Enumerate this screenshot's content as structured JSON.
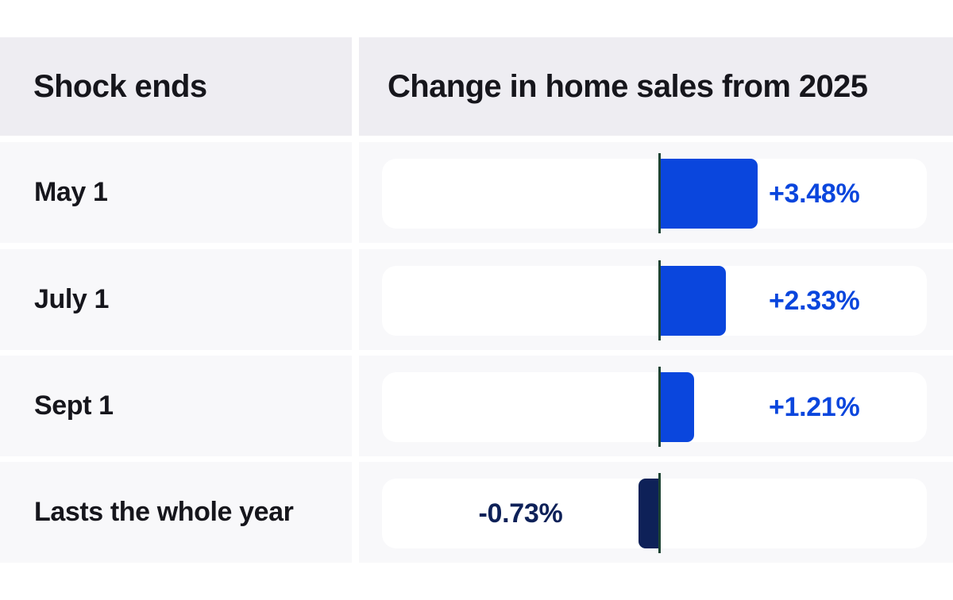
{
  "table": {
    "col1_header": "Shock ends",
    "col2_header": "Change in home sales from 2025"
  },
  "chart_data": {
    "type": "bar",
    "orientation": "horizontal",
    "title": "Change in home sales from 2025",
    "categories": [
      "May 1",
      "July 1",
      "Sept 1",
      "Lasts the whole year"
    ],
    "values": [
      3.48,
      2.33,
      1.21,
      -0.73
    ],
    "value_labels": [
      "+3.48%",
      "+2.33%",
      "+1.21%",
      "-0.73%"
    ],
    "unit": "percent",
    "axis": {
      "zero_baseline": true,
      "xlim": [
        -9.9,
        9.6
      ],
      "gridlines": false,
      "legend": "none"
    },
    "colors": {
      "positive_bar": "#0a46dd",
      "negative_bar": "#0e2158",
      "baseline": "#1e4434",
      "positive_label": "#0a46dd",
      "negative_label": "#0e2158",
      "header_bg": "#eeedf2",
      "row_bg": "#f8f8fa",
      "track_bg": "#ffffff",
      "text": "#16161c"
    },
    "rows": [
      {
        "label": "May 1",
        "value": 3.48,
        "value_label": "+3.48%"
      },
      {
        "label": "July 1",
        "value": 2.33,
        "value_label": "+2.33%"
      },
      {
        "label": "Sept 1",
        "value": 1.21,
        "value_label": "+1.21%"
      },
      {
        "label": "Lasts the whole year",
        "value": -0.73,
        "value_label": "-0.73%"
      }
    ]
  }
}
